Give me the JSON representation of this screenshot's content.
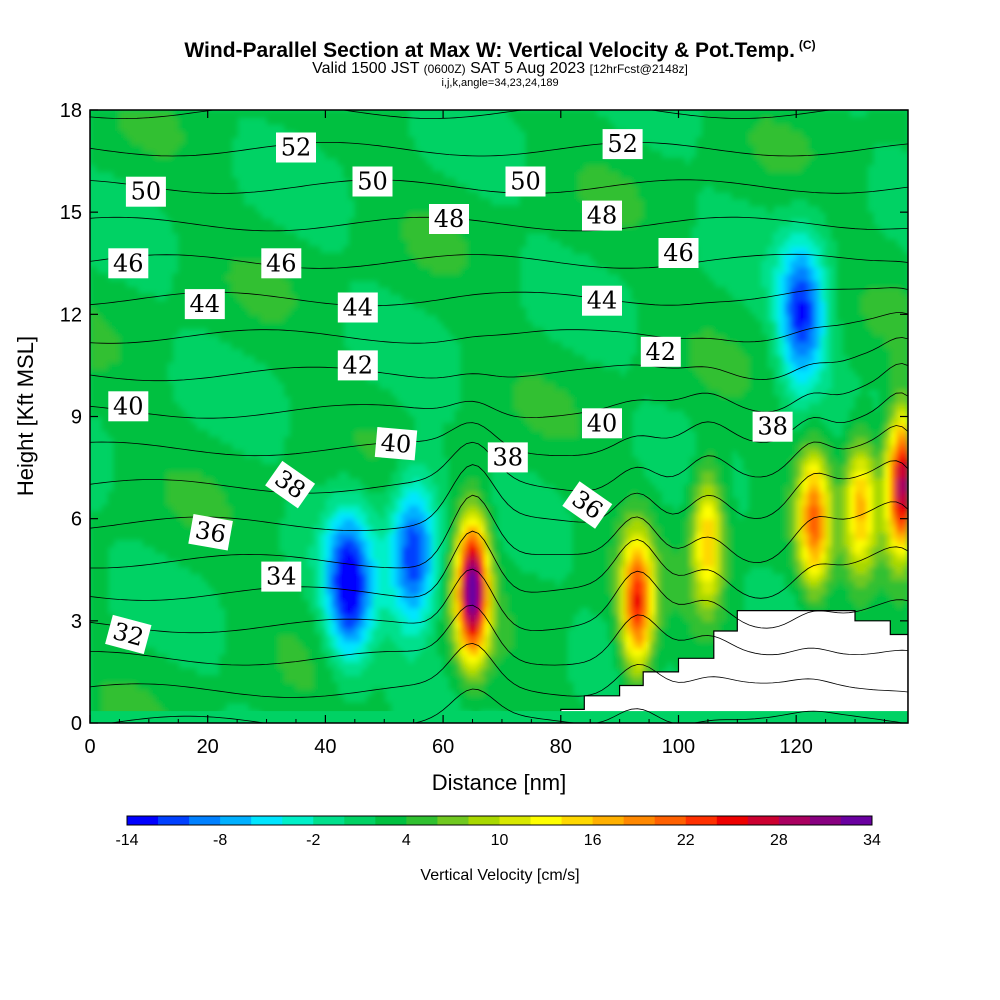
{
  "title": {
    "main": "Wind-Parallel Section at Max W: Vertical Velocity & Pot.Temp.",
    "copyright": "(C)",
    "valid_prefix": "Valid 1500 JST",
    "valid_zulu": "(0600Z)",
    "valid_date": "SAT 5 Aug 2023",
    "forecast": "[12hrFcst@2148z]",
    "params": "i,j,k,angle=34,23,24,189"
  },
  "chart_data": {
    "type": "heatmap",
    "xlabel": "Distance [nm]",
    "ylabel": "Height [Kft MSL]",
    "xlim": [
      0,
      139
    ],
    "ylim": [
      0,
      18
    ],
    "x_ticks": [
      0,
      20,
      40,
      60,
      80,
      100,
      120
    ],
    "y_ticks": [
      0,
      3,
      6,
      9,
      12,
      15,
      18
    ],
    "colorbar": {
      "label": "Vertical Velocity [cm/s]",
      "tick_labels": [
        "-14",
        "-8",
        "-2",
        "4",
        "10",
        "16",
        "22",
        "28",
        "34"
      ],
      "levels": [
        -14,
        -12,
        -10,
        -8,
        -6,
        -4,
        -2,
        0,
        2,
        4,
        6,
        8,
        10,
        12,
        14,
        16,
        18,
        20,
        22,
        24,
        26,
        28,
        30,
        32,
        34
      ],
      "colors": [
        "#0000ff",
        "#0040ff",
        "#0080ff",
        "#00b0ff",
        "#00e5ff",
        "#00f0c8",
        "#00e08c",
        "#00d264",
        "#00c040",
        "#30c030",
        "#70c820",
        "#a8d800",
        "#d8e800",
        "#ffff00",
        "#ffd800",
        "#ffb000",
        "#ff8800",
        "#ff6000",
        "#ff3000",
        "#ee0000",
        "#cc0030",
        "#aa0060",
        "#880080",
        "#6a00a0"
      ]
    },
    "theta_contours": {
      "series_label_values": [
        32,
        34,
        36,
        38,
        40,
        42,
        44,
        46,
        48,
        50,
        52
      ],
      "labels": [
        {
          "text": "32",
          "x": 6.5,
          "y": 2.6,
          "rot": 15
        },
        {
          "text": "34",
          "x": 32.5,
          "y": 4.3,
          "rot": 0
        },
        {
          "text": "36",
          "x": 20.5,
          "y": 5.6,
          "rot": 10
        },
        {
          "text": "38",
          "x": 34,
          "y": 7.0,
          "rot": 35
        },
        {
          "text": "38",
          "x": 71,
          "y": 7.8,
          "rot": 0
        },
        {
          "text": "38",
          "x": 116,
          "y": 8.7,
          "rot": 0
        },
        {
          "text": "36",
          "x": 84.5,
          "y": 6.4,
          "rot": 35
        },
        {
          "text": "40",
          "x": 6.5,
          "y": 9.3,
          "rot": 0
        },
        {
          "text": "40",
          "x": 52,
          "y": 8.2,
          "rot": 5
        },
        {
          "text": "40",
          "x": 87,
          "y": 8.8,
          "rot": 0
        },
        {
          "text": "42",
          "x": 45.5,
          "y": 10.5,
          "rot": 0
        },
        {
          "text": "42",
          "x": 97,
          "y": 10.9,
          "rot": 0
        },
        {
          "text": "44",
          "x": 19.5,
          "y": 12.3,
          "rot": 0
        },
        {
          "text": "44",
          "x": 45.5,
          "y": 12.2,
          "rot": 0
        },
        {
          "text": "44",
          "x": 87,
          "y": 12.4,
          "rot": 0
        },
        {
          "text": "46",
          "x": 6.5,
          "y": 13.5,
          "rot": 0
        },
        {
          "text": "46",
          "x": 32.5,
          "y": 13.5,
          "rot": 0
        },
        {
          "text": "46",
          "x": 100,
          "y": 13.8,
          "rot": 0
        },
        {
          "text": "48",
          "x": 61,
          "y": 14.8,
          "rot": 0
        },
        {
          "text": "48",
          "x": 87,
          "y": 14.9,
          "rot": 0
        },
        {
          "text": "50",
          "x": 9.5,
          "y": 15.6,
          "rot": 0
        },
        {
          "text": "50",
          "x": 48,
          "y": 15.9,
          "rot": 0
        },
        {
          "text": "50",
          "x": 74,
          "y": 15.9,
          "rot": 0
        },
        {
          "text": "52",
          "x": 35,
          "y": 16.9,
          "rot": 0
        },
        {
          "text": "52",
          "x": 90.5,
          "y": 17.0,
          "rot": 0
        }
      ]
    },
    "velocity_features": [
      {
        "kind": "updraft",
        "x": 65,
        "y": 4.0,
        "peak": 34
      },
      {
        "kind": "updraft",
        "x": 93,
        "y": 3.5,
        "peak": 24
      },
      {
        "kind": "updraft",
        "x": 105,
        "y": 5.5,
        "peak": 16
      },
      {
        "kind": "updraft",
        "x": 123,
        "y": 6.0,
        "peak": 20
      },
      {
        "kind": "updraft",
        "x": 131,
        "y": 6.5,
        "peak": 16
      },
      {
        "kind": "updraft",
        "x": 138,
        "y": 7.0,
        "peak": 30
      },
      {
        "kind": "downdraft",
        "x": 44,
        "y": 4.0,
        "peak": -14
      },
      {
        "kind": "downdraft",
        "x": 55,
        "y": 5.0,
        "peak": -12
      },
      {
        "kind": "downdraft",
        "x": 121,
        "y": 12.0,
        "peak": -12
      }
    ],
    "terrain": [
      [
        80,
        0.4
      ],
      [
        84,
        0.8
      ],
      [
        90,
        1.1
      ],
      [
        94,
        1.5
      ],
      [
        100,
        1.9
      ],
      [
        106,
        2.7
      ],
      [
        110,
        3.3
      ],
      [
        130,
        3.0
      ],
      [
        136,
        2.6
      ],
      [
        139,
        2.6
      ]
    ]
  }
}
